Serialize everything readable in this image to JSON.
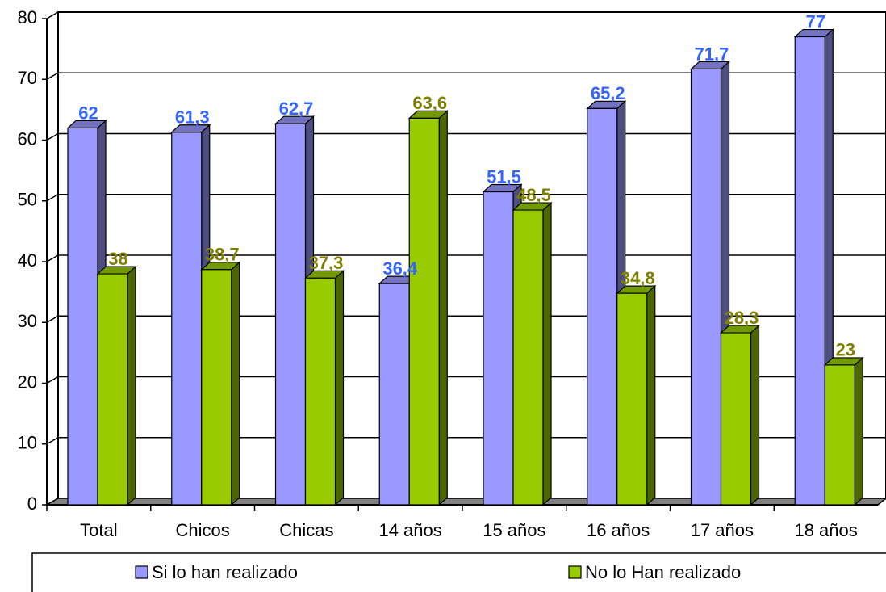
{
  "chart_data": {
    "type": "bar",
    "categories": [
      "Total",
      "Chicos",
      "Chicas",
      "14 años",
      "15 años",
      "16 años",
      "17 años",
      "18 años"
    ],
    "series": [
      {
        "name": "Si lo han realizado",
        "color": "#9999ff",
        "label_color": "#3366ff",
        "values": [
          62,
          61.3,
          62.7,
          36.4,
          51.5,
          65.2,
          71.7,
          77
        ],
        "value_labels": [
          "62",
          "61,3",
          "62,7",
          "36,4",
          "51,5",
          "65,2",
          "71,7",
          "77"
        ]
      },
      {
        "name": "No lo Han realizado",
        "color": "#99cc00",
        "label_color": "#808000",
        "values": [
          38,
          38.7,
          37.3,
          63.6,
          48.5,
          34.8,
          28.3,
          23
        ],
        "value_labels": [
          "38",
          "38,7",
          "37,3",
          "63,6",
          "48,5",
          "34,8",
          "28,3",
          "23"
        ]
      }
    ],
    "ylim": [
      0,
      80
    ],
    "yticks": [
      0,
      10,
      20,
      30,
      40,
      50,
      60,
      70,
      80
    ],
    "grid": true,
    "legend": "bottom"
  }
}
